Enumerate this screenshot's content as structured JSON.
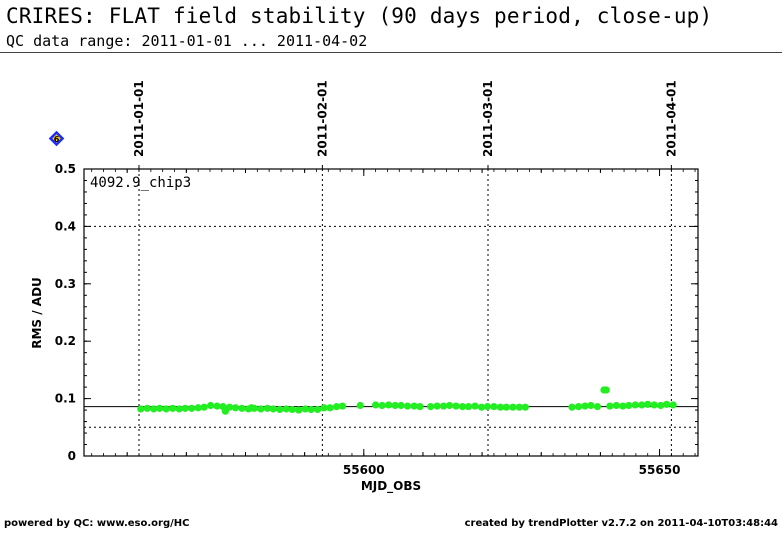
{
  "header": {
    "title": "CRIRES: FLAT field stability (90 days period, close-up)",
    "subtitle": "QC data range: 2011-01-01 ... 2011-04-02"
  },
  "footer": {
    "left": "powered by QC: www.eso.org/HC",
    "right": "created by trendPlotter v2.7.2 on 2011-04-10T03:48:44"
  },
  "badge": "6",
  "chart_data": {
    "type": "scatter",
    "title": "CRIRES: FLAT field stability (90 days period, close-up)",
    "panel_label": "4092.9_chip3",
    "xlabel": "MJD_OBS",
    "ylabel": "RMS / ADU",
    "xlim": [
      55552.7,
      55656.5
    ],
    "ylim": [
      0,
      0.5
    ],
    "x_ticks": [
      55600,
      55650
    ],
    "y_ticks": [
      0,
      0.1,
      0.2,
      0.3,
      0.4,
      0.5
    ],
    "date_markers": [
      {
        "label": "2011-01-01",
        "x": 55562
      },
      {
        "label": "2011-02-01",
        "x": 55593
      },
      {
        "label": "2011-03-01",
        "x": 55621
      },
      {
        "label": "2011-04-01",
        "x": 55652
      }
    ],
    "reference_lines": {
      "mean": 0.086,
      "lower": 0.05,
      "upper": 0.4
    },
    "grid": true,
    "marker_color": "#22ee22",
    "series": [
      {
        "x": [
          55562.3,
          55563.4,
          55564.5,
          55565.5,
          55566.6,
          55567.7,
          55568.8,
          55569.8,
          55570.9,
          55572.0,
          55573.0,
          55574.1,
          55575.2,
          55576.2,
          55576.6,
          55577.3,
          55578.3,
          55579.4,
          55580.5,
          55581.0,
          55581.5,
          55582.6,
          55583.7,
          55584.7,
          55585.8,
          55586.9,
          55587.9,
          55589.0,
          55590.1,
          55591.1,
          55592.2,
          55593.3,
          55594.3,
          55595.4,
          55596.4,
          55599.4,
          55602.0,
          55603.1,
          55604.2,
          55605.3,
          55606.3,
          55607.4,
          55608.5,
          55609.5,
          55611.3,
          55612.4,
          55613.5,
          55614.5,
          55615.6,
          55616.7,
          55617.7,
          55618.8,
          55619.9,
          55620.9,
          55622.0,
          55623.1,
          55624.1,
          55625.2,
          55626.3,
          55627.3,
          55635.2,
          55636.3,
          55637.4,
          55638.4,
          55639.5,
          55640.6,
          55641.0,
          55641.6,
          55642.7,
          55643.8,
          55644.8,
          55645.9,
          55647.0,
          55648.0,
          55649.1,
          55650.2,
          55651.2,
          55652.3
        ],
        "y": [
          0.082,
          0.083,
          0.082,
          0.083,
          0.082,
          0.083,
          0.082,
          0.083,
          0.083,
          0.084,
          0.085,
          0.088,
          0.087,
          0.086,
          0.078,
          0.085,
          0.084,
          0.083,
          0.082,
          0.084,
          0.083,
          0.082,
          0.083,
          0.082,
          0.081,
          0.082,
          0.081,
          0.08,
          0.082,
          0.081,
          0.081,
          0.084,
          0.084,
          0.086,
          0.087,
          0.088,
          0.089,
          0.088,
          0.089,
          0.088,
          0.088,
          0.087,
          0.087,
          0.086,
          0.086,
          0.087,
          0.087,
          0.088,
          0.087,
          0.086,
          0.086,
          0.087,
          0.085,
          0.086,
          0.086,
          0.085,
          0.085,
          0.085,
          0.085,
          0.085,
          0.085,
          0.086,
          0.087,
          0.088,
          0.086,
          0.115,
          0.115,
          0.087,
          0.088,
          0.087,
          0.088,
          0.089,
          0.089,
          0.09,
          0.089,
          0.088,
          0.09,
          0.089
        ]
      }
    ]
  }
}
